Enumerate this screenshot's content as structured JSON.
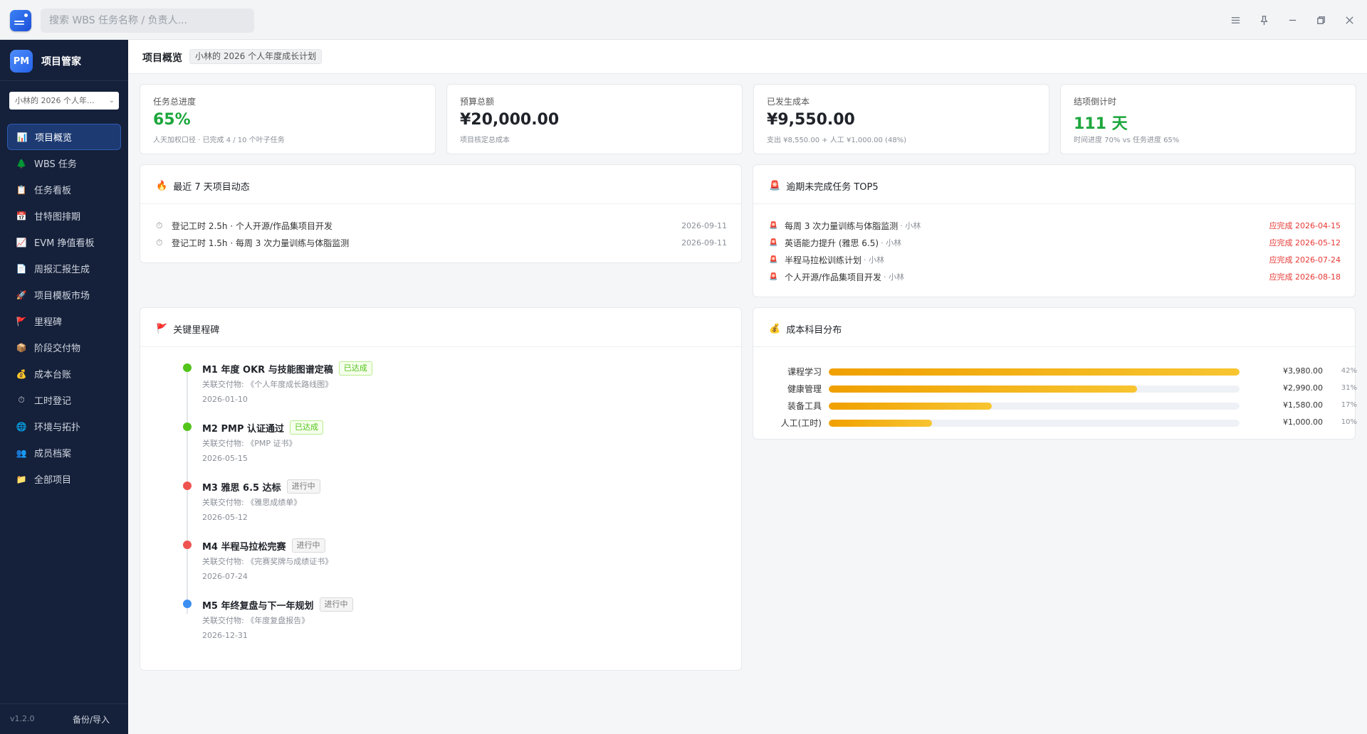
{
  "titlebar": {
    "search_placeholder": "搜索 WBS 任务名称 / 负责人..."
  },
  "sidebar": {
    "brand_logo": "PM",
    "brand_name": "项目管家",
    "project_select": "小林的 2026 个人年...",
    "items": [
      {
        "label": "项目概览",
        "icon": "chart-icon",
        "glyph": "📊",
        "active": true
      },
      {
        "label": "WBS 任务",
        "icon": "tree-icon",
        "glyph": "🌲"
      },
      {
        "label": "任务看板",
        "icon": "clipboard-icon",
        "glyph": "📋"
      },
      {
        "label": "甘特图排期",
        "icon": "calendar-icon",
        "glyph": "📅"
      },
      {
        "label": "EVM 挣值看板",
        "icon": "trend-chart-icon",
        "glyph": "📈"
      },
      {
        "label": "周报汇报生成",
        "icon": "document-icon",
        "glyph": "📄"
      },
      {
        "label": "项目模板市场",
        "icon": "rocket-icon",
        "glyph": "🚀"
      },
      {
        "label": "里程碑",
        "icon": "flag-icon",
        "glyph": "🚩"
      },
      {
        "label": "阶段交付物",
        "icon": "package-icon",
        "glyph": "📦"
      },
      {
        "label": "成本台账",
        "icon": "money-bag-icon",
        "glyph": "💰"
      },
      {
        "label": "工时登记",
        "icon": "stopwatch-icon",
        "glyph": "⏱"
      },
      {
        "label": "环境与拓扑",
        "icon": "globe-icon",
        "glyph": "🌐"
      },
      {
        "label": "成员档案",
        "icon": "people-icon",
        "glyph": "👥"
      },
      {
        "label": "全部项目",
        "icon": "folder-icon",
        "glyph": "📁"
      }
    ],
    "version": "v1.2.0",
    "backup": "备份/导入"
  },
  "header": {
    "title": "项目概览",
    "project_tag": "小林的 2026 个人年度成长计划"
  },
  "kpis": [
    {
      "label": "任务总进度",
      "value": "65%",
      "sub": "人天加权口径 · 已完成 4 / 10 个叶子任务",
      "color": "#1ca63c"
    },
    {
      "label": "预算总额",
      "value": "¥20,000.00",
      "sub": "项目核定总成本",
      "color": "#1f2329"
    },
    {
      "label": "已发生成本",
      "value": "¥9,550.00",
      "sub": "支出 ¥8,550.00 + 人工 ¥1,000.00 (48%)",
      "color": "#1f2329"
    },
    {
      "label": "结项倒计时",
      "value": "111 天",
      "sub": "时间进度 70% vs 任务进度 65%",
      "color": "#1ca63c"
    }
  ],
  "activity": {
    "title": "最近 7 天项目动态",
    "icon": "fire-icon",
    "rows": [
      {
        "text": "登记工时 2.5h · 个人开源/作品集项目开发",
        "date": "2026-09-11"
      },
      {
        "text": "登记工时 1.5h · 每周 3 次力量训练与体脂监测",
        "date": "2026-09-11"
      }
    ]
  },
  "overdue": {
    "title": "逾期未完成任务 TOP5",
    "icon": "alarm-icon",
    "rows": [
      {
        "task": "每周 3 次力量训练与体脂监测",
        "owner": "· 小林",
        "due": "应完成 2026-04-15"
      },
      {
        "task": "英语能力提升 (雅思 6.5)",
        "owner": "· 小林",
        "due": "应完成 2026-05-12"
      },
      {
        "task": "半程马拉松训练计划",
        "owner": "· 小林",
        "due": "应完成 2026-07-24"
      },
      {
        "task": "个人开源/作品集项目开发",
        "owner": "· 小林",
        "due": "应完成 2026-08-18"
      }
    ]
  },
  "milestones": {
    "title": "关键里程碑",
    "icon": "flag-icon",
    "items": [
      {
        "title": "M1 年度 OKR 与技能图谱定稿",
        "status": "已达成",
        "done": true,
        "deliverable": "关联交付物: 《个人年度成长路线图》",
        "date": "2026-01-10",
        "dot": "#52c41a"
      },
      {
        "title": "M2 PMP 认证通过",
        "status": "已达成",
        "done": true,
        "deliverable": "关联交付物: 《PMP 证书》",
        "date": "2026-05-15",
        "dot": "#52c41a"
      },
      {
        "title": "M3 雅思 6.5 达标",
        "status": "进行中",
        "done": false,
        "deliverable": "关联交付物: 《雅思成绩单》",
        "date": "2026-05-12",
        "dot": "#ef5350"
      },
      {
        "title": "M4 半程马拉松完赛",
        "status": "进行中",
        "done": false,
        "deliverable": "关联交付物: 《完赛奖牌与成绩证书》",
        "date": "2026-07-24",
        "dot": "#ef5350"
      },
      {
        "title": "M5 年终复盘与下一年规划",
        "status": "进行中",
        "done": false,
        "deliverable": "关联交付物: 《年度复盘报告》",
        "date": "2026-12-31",
        "dot": "#3b8ff0"
      }
    ]
  },
  "cost": {
    "title": "成本科目分布",
    "icon": "money-bag-icon",
    "rows": [
      {
        "name": "课程学习",
        "amount": "¥3,980.00",
        "pct": "42%",
        "fraction": 1.0
      },
      {
        "name": "健康管理",
        "amount": "¥2,990.00",
        "pct": "31%",
        "fraction": 0.751
      },
      {
        "name": "装备工具",
        "amount": "¥1,580.00",
        "pct": "17%",
        "fraction": 0.397
      },
      {
        "name": "人工(工时)",
        "amount": "¥1,000.00",
        "pct": "10%",
        "fraction": 0.251
      }
    ]
  }
}
